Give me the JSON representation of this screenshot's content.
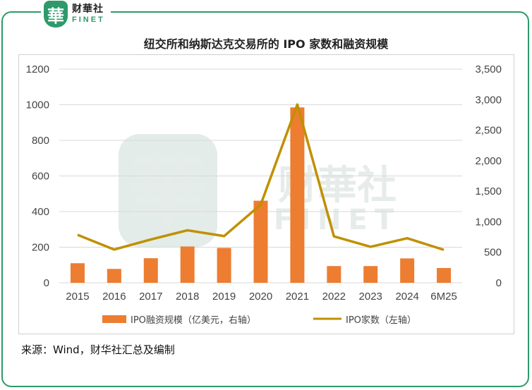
{
  "logo": {
    "glyph": "華",
    "name_cn": "财華社",
    "name_en": "FINET"
  },
  "header": {
    "title": "纽交所和纳斯达克交易所的 IPO 家数和融资规模"
  },
  "footer": {
    "source": "来源：Wind，财华社汇总及编制"
  },
  "colors": {
    "bar": "#ed7d31",
    "line": "#bf9000",
    "frame": "#2e9a6a"
  },
  "chart_data": {
    "type": "bar",
    "categories": [
      "2015",
      "2016",
      "2017",
      "2018",
      "2019",
      "2020",
      "2021",
      "2022",
      "2023",
      "2024",
      "6M25"
    ],
    "series": [
      {
        "name": "IPO融资规模（亿美元，右轴）",
        "type": "bar",
        "axis": "left",
        "values": [
          110,
          78,
          138,
          204,
          196,
          461,
          985,
          94,
          94,
          137,
          83
        ]
      },
      {
        "name": "IPO家数（左轴）",
        "type": "line",
        "axis": "right",
        "values": [
          785,
          545,
          710,
          860,
          765,
          1280,
          2920,
          760,
          590,
          730,
          540
        ]
      }
    ],
    "left_axis": {
      "ylim": [
        0,
        1200
      ],
      "ticks": [
        "0",
        "200",
        "400",
        "600",
        "800",
        "1000",
        "1200"
      ]
    },
    "right_axis": {
      "ylim": [
        0,
        3500
      ],
      "ticks": [
        "0",
        "500",
        "1,000",
        "1,500",
        "2,000",
        "2,500",
        "3,000",
        "3,500"
      ]
    },
    "grid": true,
    "legend_position": "bottom"
  }
}
